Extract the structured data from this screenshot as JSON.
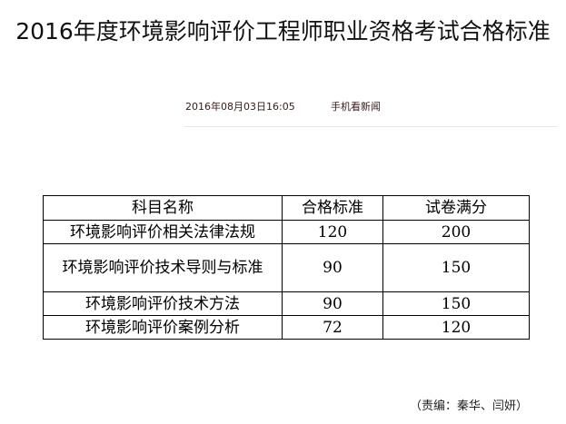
{
  "article": {
    "title": "2016年度环境影响评价工程师职业资格考试合格标准",
    "date": "2016年08月03日16:05",
    "mobile_link": "手机看新闻",
    "editor": "（责编：秦华、闫妍）"
  },
  "table": {
    "headers": [
      "科目名称",
      "合格标准",
      "试卷满分"
    ],
    "rows": [
      [
        "环境影响评价相关法律法规",
        "120",
        "200"
      ],
      [
        "环境影响评价技术导则与标准",
        "90",
        "150"
      ],
      [
        "环境影响评价技术方法",
        "90",
        "150"
      ],
      [
        "环境影响评价案例分析",
        "72",
        "120"
      ]
    ]
  }
}
